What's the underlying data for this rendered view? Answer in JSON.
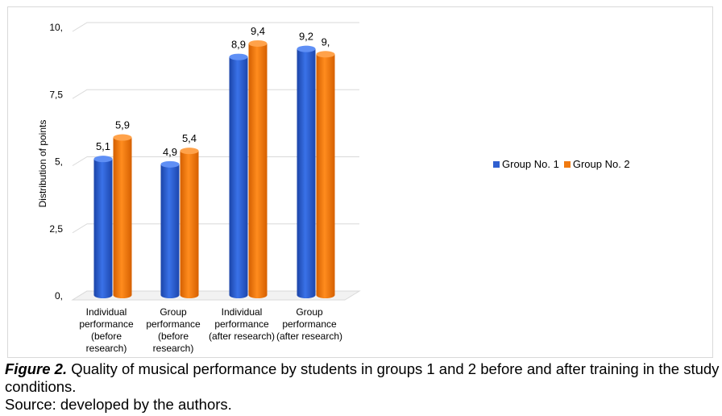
{
  "chart_data": {
    "type": "bar",
    "title": "",
    "xlabel": "",
    "ylabel": "Distribution of points",
    "ylim": [
      0,
      10
    ],
    "yticks": [
      0,
      2.5,
      5,
      7.5,
      10
    ],
    "ytick_labels": [
      "0,",
      "2,5",
      "5,",
      "7,5",
      "10,"
    ],
    "categories": [
      [
        "Individual",
        "performance",
        "(before",
        "research)"
      ],
      [
        "Group",
        "performance",
        "(before",
        "research)"
      ],
      [
        "Individual",
        "performance",
        "(after research)"
      ],
      [
        "Group",
        "performance",
        "(after research)"
      ]
    ],
    "series": [
      {
        "name": "Group No. 1",
        "values": [
          5.1,
          4.9,
          8.9,
          9.2
        ],
        "labels": [
          "5,1",
          "4,9",
          "8,9",
          "9,2"
        ],
        "color": "#2f5fd0"
      },
      {
        "name": "Group No. 2",
        "values": [
          5.9,
          5.4,
          9.4,
          9.0
        ],
        "labels": [
          "5,9",
          "5,4",
          "9,4",
          "9,"
        ],
        "color": "#f07a10"
      }
    ],
    "grid": true,
    "legend_position": "right"
  },
  "caption": {
    "figure_label": "Figure 2.",
    "text": " Quality of musical performance by students in groups 1 and 2 before and after training in the study conditions.",
    "source": "Source: developed by the authors."
  }
}
